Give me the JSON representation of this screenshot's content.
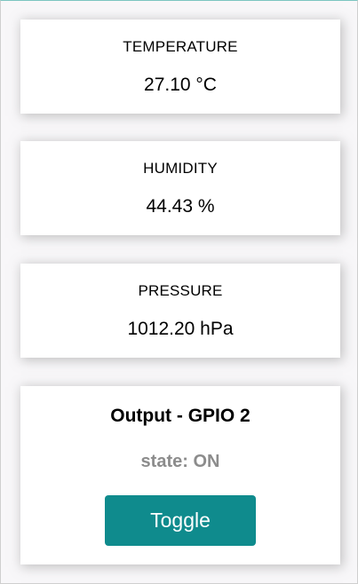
{
  "cards": {
    "temperature": {
      "label": "TEMPERATURE",
      "value": "27.10 °C"
    },
    "humidity": {
      "label": "HUMIDITY",
      "value": "44.43 %"
    },
    "pressure": {
      "label": "PRESSURE",
      "value": "1012.20 hPa"
    }
  },
  "output": {
    "title": "Output - GPIO 2",
    "state": "state: ON",
    "toggle_label": "Toggle"
  },
  "colors": {
    "accent": "#0f8b8d",
    "state_text": "#8c8c8c",
    "background": "#f8f7f9",
    "card": "#ffffff"
  }
}
